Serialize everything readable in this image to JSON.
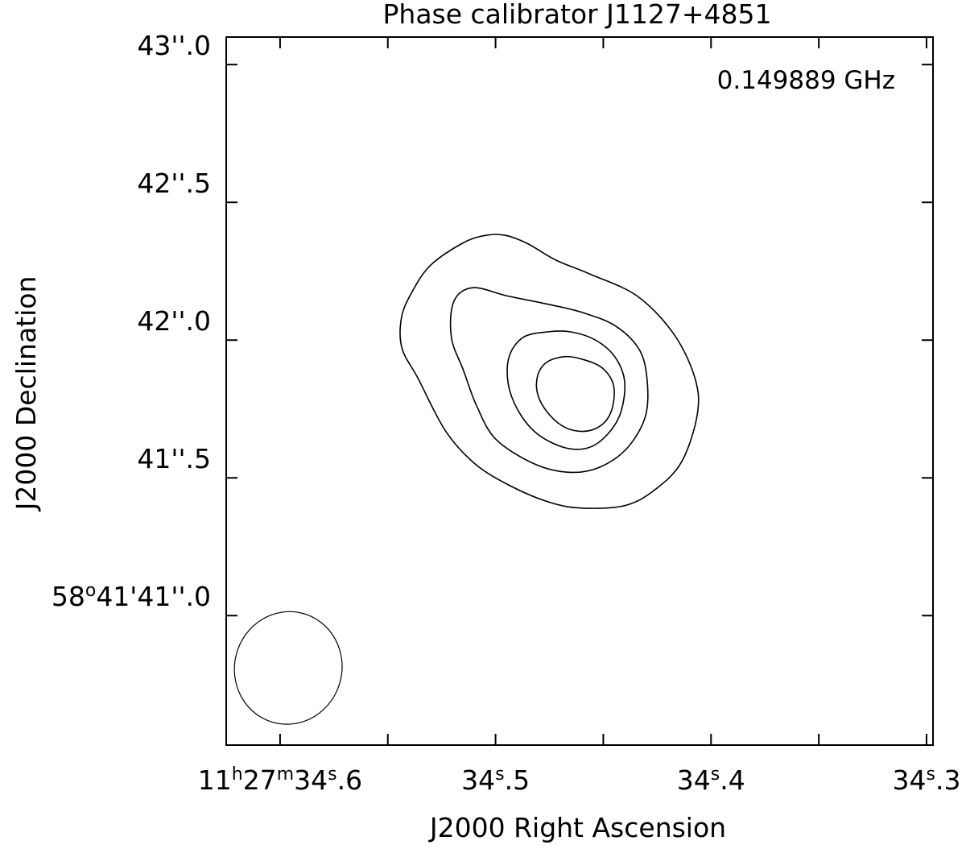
{
  "chart_data": {
    "type": "contour",
    "title": "Phase calibrator J1127+4851",
    "annotation": "0.149889 GHz",
    "xlabel": "J2000 Right Ascension",
    "ylabel": "J2000 Declination",
    "x_axis": {
      "unit": "seconds of RA (11h27m)",
      "range": [
        34.625,
        34.297
      ],
      "reversed": true,
      "major_ticks": [
        {
          "value": 34.6,
          "h": "11",
          "m": "27",
          "s": "34",
          "frac": ".6",
          "full": true
        },
        {
          "value": 34.5,
          "s": "34",
          "frac": ".5"
        },
        {
          "value": 34.4,
          "s": "34",
          "frac": ".4"
        },
        {
          "value": 34.3,
          "s": "34",
          "frac": ".3"
        }
      ],
      "minor_ticks": [
        34.55,
        34.45,
        34.35
      ]
    },
    "y_axis": {
      "unit": "arcsec (58°41')",
      "range": [
        40.53,
        43.1
      ],
      "major_ticks": [
        {
          "value": 43.0,
          "sec": "43",
          "frac": ".0"
        },
        {
          "value": 42.5,
          "sec": "42",
          "frac": ".5"
        },
        {
          "value": 42.0,
          "sec": "42",
          "frac": ".0"
        },
        {
          "value": 41.5,
          "sec": "41",
          "frac": ".5"
        },
        {
          "value": 41.0,
          "deg": "58",
          "min": "41",
          "sec": "41",
          "frac": ".0",
          "full": true
        }
      ]
    },
    "beam": {
      "center": [
        34.5962,
        40.81
      ],
      "semi_major_arcsec": 0.205,
      "semi_minor_arcsec": 0.195,
      "position_angle_deg": 15
    },
    "contours": [
      {
        "level_index": 1,
        "points": [
          [
            34.4952,
            42.38
          ],
          [
            34.4851,
            42.35
          ],
          [
            34.4719,
            42.29
          ],
          [
            34.4563,
            42.24
          ],
          [
            34.4343,
            42.16
          ],
          [
            34.4171,
            42.02
          ],
          [
            34.4074,
            41.86
          ],
          [
            34.4064,
            41.73
          ],
          [
            34.4135,
            41.56
          ],
          [
            34.4255,
            41.46
          ],
          [
            34.4396,
            41.4
          ],
          [
            34.4592,
            41.39
          ],
          [
            34.4744,
            41.41
          ],
          [
            34.4929,
            41.47
          ],
          [
            34.5094,
            41.55
          ],
          [
            34.5232,
            41.67
          ],
          [
            34.5359,
            41.86
          ],
          [
            34.5434,
            41.97
          ],
          [
            34.5437,
            42.08
          ],
          [
            34.5391,
            42.17
          ],
          [
            34.5304,
            42.27
          ],
          [
            34.5157,
            42.35
          ],
          [
            34.5049,
            42.38
          ]
        ]
      },
      {
        "level_index": 2,
        "points": [
          [
            34.5106,
            42.19
          ],
          [
            34.4944,
            42.16
          ],
          [
            34.4755,
            42.13
          ],
          [
            34.4596,
            42.1
          ],
          [
            34.4441,
            42.05
          ],
          [
            34.4329,
            41.96
          ],
          [
            34.4295,
            41.84
          ],
          [
            34.4306,
            41.72
          ],
          [
            34.4387,
            41.61
          ],
          [
            34.4513,
            41.54
          ],
          [
            34.4652,
            41.52
          ],
          [
            34.4818,
            41.55
          ],
          [
            34.4998,
            41.64
          ],
          [
            34.5087,
            41.76
          ],
          [
            34.5149,
            41.89
          ],
          [
            34.5205,
            42.01
          ],
          [
            34.5194,
            42.14
          ]
        ]
      },
      {
        "level_index": 3,
        "points": [
          [
            34.4758,
            42.03
          ],
          [
            34.4651,
            42.03
          ],
          [
            34.4536,
            42.0
          ],
          [
            34.4447,
            41.94
          ],
          [
            34.4401,
            41.85
          ],
          [
            34.4418,
            41.74
          ],
          [
            34.4478,
            41.66
          ],
          [
            34.4567,
            41.61
          ],
          [
            34.4681,
            41.61
          ],
          [
            34.4807,
            41.66
          ],
          [
            34.4892,
            41.74
          ],
          [
            34.4941,
            41.84
          ],
          [
            34.4937,
            41.94
          ],
          [
            34.4872,
            42.01
          ]
        ]
      },
      {
        "level_index": 4,
        "points": [
          [
            34.4677,
            41.94
          ],
          [
            34.4595,
            41.93
          ],
          [
            34.4507,
            41.9
          ],
          [
            34.4454,
            41.84
          ],
          [
            34.4456,
            41.76
          ],
          [
            34.4496,
            41.7
          ],
          [
            34.4574,
            41.67
          ],
          [
            34.4669,
            41.68
          ],
          [
            34.4751,
            41.73
          ],
          [
            34.4803,
            41.8
          ],
          [
            34.4805,
            41.87
          ],
          [
            34.4762,
            41.92
          ]
        ]
      }
    ],
    "grid": false,
    "legend": "none"
  }
}
